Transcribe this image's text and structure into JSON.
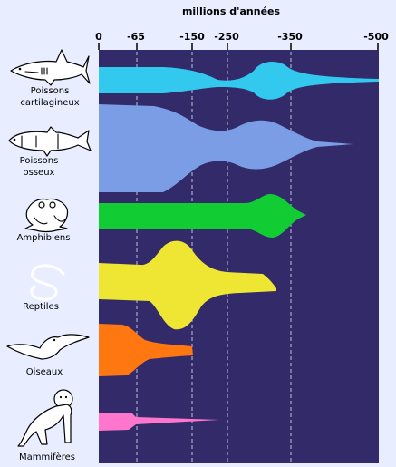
{
  "axis": {
    "title": "millions d'années",
    "ticks": [
      "0",
      "-65",
      "-150",
      "-250",
      "-350",
      "-500"
    ]
  },
  "colors": {
    "background": "#e8eeff",
    "panel": "#332a6a",
    "gridline": "#c0c0d8"
  },
  "groups": [
    {
      "key": "cartilaginous",
      "label_lines": [
        "Poissons",
        "cartilagineux"
      ],
      "icon": "shark-icon",
      "color": "#33c9ee"
    },
    {
      "key": "bony",
      "label_lines": [
        "Poissons",
        "osseux"
      ],
      "icon": "fish-icon",
      "color": "#7b9de6"
    },
    {
      "key": "amphibians",
      "label_lines": [
        "Amphibiens"
      ],
      "icon": "frog-icon",
      "color": "#11cc33"
    },
    {
      "key": "reptiles",
      "label_lines": [
        "Reptiles"
      ],
      "icon": "snake-icon",
      "color": "#eee633"
    },
    {
      "key": "birds",
      "label_lines": [
        "Oiseaux"
      ],
      "icon": "bird-icon",
      "color": "#ff7711"
    },
    {
      "key": "mammals",
      "label_lines": [
        "Mammifères"
      ],
      "icon": "monkey-icon",
      "color": "#ff77cc"
    }
  ]
}
